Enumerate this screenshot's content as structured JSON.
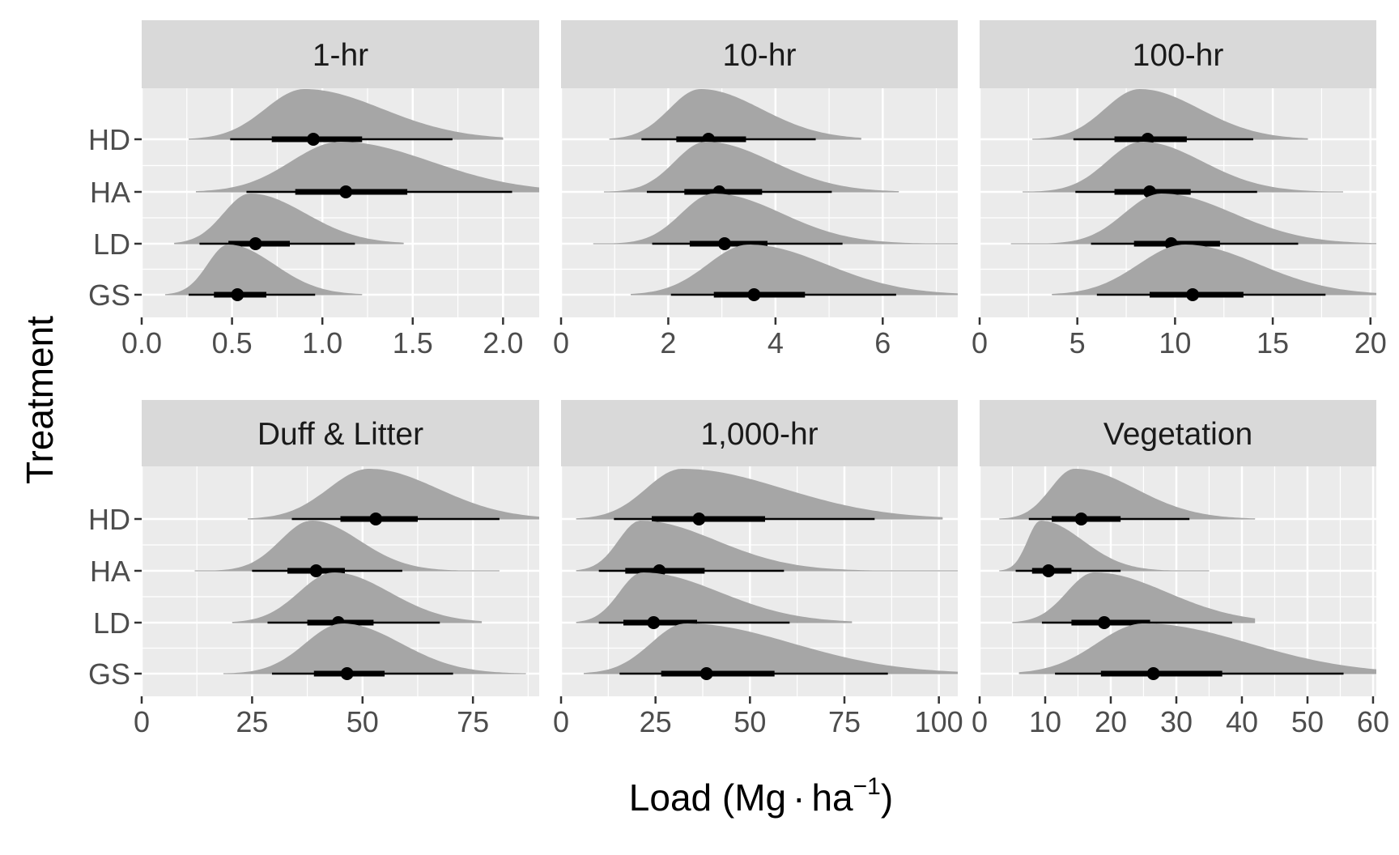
{
  "y_axis_title": "Treatment",
  "x_axis_title": {
    "text": "Load (Mg",
    "dot": "·",
    "unit": "ha",
    "exponent": "−1",
    "close": ")"
  },
  "colors": {
    "panel_bg": "#ebebeb",
    "strip_bg": "#d9d9d9",
    "grid": "#ffffff",
    "density": "#a6a6a6",
    "interval": "#000000"
  },
  "chart_data": [
    {
      "type": "density",
      "title": "1-hr",
      "xlim": [
        0,
        2.2
      ],
      "ticks": [
        0,
        0.5,
        1,
        1.5,
        2
      ],
      "tick_labels": [
        "0.0",
        "0.5",
        "1.0",
        "1.5",
        "2.0"
      ],
      "categories": [
        "HD",
        "HA",
        "LD",
        "GS"
      ],
      "series": [
        {
          "name": "HD",
          "mode": 0.9,
          "point": 0.95,
          "inner": [
            0.72,
            1.22
          ],
          "outer": [
            0.49,
            1.72
          ],
          "tails": [
            0.26,
            2.0
          ]
        },
        {
          "name": "HA",
          "mode": 1.1,
          "point": 1.13,
          "inner": [
            0.85,
            1.47
          ],
          "outer": [
            0.58,
            2.05
          ],
          "tails": [
            0.3,
            2.2
          ]
        },
        {
          "name": "LD",
          "mode": 0.6,
          "point": 0.63,
          "inner": [
            0.48,
            0.82
          ],
          "outer": [
            0.32,
            1.18
          ],
          "tails": [
            0.18,
            1.45
          ]
        },
        {
          "name": "GS",
          "mode": 0.48,
          "point": 0.53,
          "inner": [
            0.4,
            0.69
          ],
          "outer": [
            0.26,
            0.96
          ],
          "tails": [
            0.13,
            1.22
          ]
        }
      ]
    },
    {
      "type": "density",
      "title": "10-hr",
      "xlim": [
        0,
        7.4
      ],
      "ticks": [
        0,
        2,
        4,
        6
      ],
      "tick_labels": [
        "0",
        "2",
        "4",
        "6"
      ],
      "categories": [
        "HD",
        "HA",
        "LD",
        "GS"
      ],
      "series": [
        {
          "name": "HD",
          "mode": 2.6,
          "point": 2.75,
          "inner": [
            2.15,
            3.45
          ],
          "outer": [
            1.5,
            4.75
          ],
          "tails": [
            0.9,
            5.6
          ]
        },
        {
          "name": "HA",
          "mode": 2.7,
          "point": 2.95,
          "inner": [
            2.3,
            3.75
          ],
          "outer": [
            1.6,
            5.05
          ],
          "tails": [
            0.8,
            6.3
          ]
        },
        {
          "name": "LD",
          "mode": 2.85,
          "point": 3.05,
          "inner": [
            2.4,
            3.85
          ],
          "outer": [
            1.7,
            5.25
          ],
          "tails": [
            0.6,
            7.4
          ]
        },
        {
          "name": "GS",
          "mode": 3.5,
          "point": 3.6,
          "inner": [
            2.85,
            4.55
          ],
          "outer": [
            2.05,
            6.25
          ],
          "tails": [
            1.3,
            7.4
          ]
        }
      ]
    },
    {
      "type": "density",
      "title": "100-hr",
      "xlim": [
        0,
        20.3
      ],
      "ticks": [
        0,
        5,
        10,
        15,
        20
      ],
      "tick_labels": [
        "0",
        "5",
        "10",
        "15",
        "20"
      ],
      "categories": [
        "HD",
        "HA",
        "LD",
        "GS"
      ],
      "series": [
        {
          "name": "HD",
          "mode": 8.2,
          "point": 8.6,
          "inner": [
            6.9,
            10.6
          ],
          "outer": [
            4.8,
            14.0
          ],
          "tails": [
            2.7,
            16.8
          ]
        },
        {
          "name": "HA",
          "mode": 8.3,
          "point": 8.7,
          "inner": [
            6.9,
            10.8
          ],
          "outer": [
            4.9,
            14.2
          ],
          "tails": [
            2.2,
            18.6
          ]
        },
        {
          "name": "LD",
          "mode": 9.3,
          "point": 9.8,
          "inner": [
            7.9,
            12.3
          ],
          "outer": [
            5.7,
            16.3
          ],
          "tails": [
            1.6,
            20.3
          ]
        },
        {
          "name": "GS",
          "mode": 10.5,
          "point": 10.9,
          "inner": [
            8.7,
            13.5
          ],
          "outer": [
            6.0,
            17.7
          ],
          "tails": [
            3.7,
            20.3
          ]
        }
      ]
    },
    {
      "type": "density",
      "title": "Duff & Litter",
      "xlim": [
        0,
        90
      ],
      "ticks": [
        0,
        25,
        50,
        75
      ],
      "tick_labels": [
        "0",
        "25",
        "50",
        "75"
      ],
      "categories": [
        "HD",
        "HA",
        "LD",
        "GS"
      ],
      "series": [
        {
          "name": "HD",
          "mode": 51.5,
          "point": 53,
          "inner": [
            45,
            62.5
          ],
          "outer": [
            34,
            81
          ],
          "tails": [
            24,
            90
          ]
        },
        {
          "name": "HA",
          "mode": 38.5,
          "point": 39.5,
          "inner": [
            33,
            46
          ],
          "outer": [
            25,
            59
          ],
          "tails": [
            12,
            81
          ]
        },
        {
          "name": "LD",
          "mode": 43.5,
          "point": 44.5,
          "inner": [
            37.5,
            52.5
          ],
          "outer": [
            28.5,
            67.5
          ],
          "tails": [
            20.5,
            77
          ]
        },
        {
          "name": "GS",
          "mode": 45.5,
          "point": 46.5,
          "inner": [
            39,
            55
          ],
          "outer": [
            29.5,
            70.5
          ],
          "tails": [
            18.5,
            87
          ]
        }
      ]
    },
    {
      "type": "density",
      "title": "1,000-hr",
      "xlim": [
        0,
        105
      ],
      "ticks": [
        0,
        25,
        50,
        75,
        100
      ],
      "tick_labels": [
        "0",
        "25",
        "50",
        "75",
        "100"
      ],
      "categories": [
        "HD",
        "HA",
        "LD",
        "GS"
      ],
      "series": [
        {
          "name": "HD",
          "mode": 32,
          "point": 36.5,
          "inner": [
            24,
            54
          ],
          "outer": [
            14,
            83
          ],
          "tails": [
            4,
            101
          ]
        },
        {
          "name": "HA",
          "mode": 21,
          "point": 26,
          "inner": [
            17,
            38
          ],
          "outer": [
            10,
            59
          ],
          "tails": [
            4,
            105
          ]
        },
        {
          "name": "LD",
          "mode": 21.5,
          "point": 24.5,
          "inner": [
            16.5,
            36
          ],
          "outer": [
            10,
            60.5
          ],
          "tails": [
            4,
            77
          ]
        },
        {
          "name": "GS",
          "mode": 33,
          "point": 38.5,
          "inner": [
            26.5,
            56.5
          ],
          "outer": [
            15.5,
            86.5
          ],
          "tails": [
            6,
            105
          ]
        }
      ]
    },
    {
      "type": "density",
      "title": "Vegetation",
      "xlim": [
        0,
        60.5
      ],
      "ticks": [
        0,
        10,
        20,
        30,
        40,
        50,
        60
      ],
      "tick_labels": [
        "0",
        "10",
        "20",
        "30",
        "40",
        "50",
        "60"
      ],
      "categories": [
        "HD",
        "HA",
        "LD",
        "GS"
      ],
      "series": [
        {
          "name": "HD",
          "mode": 14.5,
          "point": 15.5,
          "inner": [
            11,
            21.5
          ],
          "outer": [
            7.5,
            32
          ],
          "tails": [
            3,
            42
          ]
        },
        {
          "name": "HA",
          "mode": 9.3,
          "point": 10.5,
          "inner": [
            8,
            14
          ],
          "outer": [
            5.5,
            21.5
          ],
          "tails": [
            3,
            35
          ]
        },
        {
          "name": "LD",
          "mode": 17.5,
          "point": 19,
          "inner": [
            14,
            26
          ],
          "outer": [
            9.5,
            38.5
          ],
          "tails": [
            5,
            42
          ]
        },
        {
          "name": "GS",
          "mode": 25,
          "point": 26.5,
          "inner": [
            18.5,
            37
          ],
          "outer": [
            11.5,
            55.5
          ],
          "tails": [
            6,
            60.5
          ]
        }
      ]
    }
  ]
}
